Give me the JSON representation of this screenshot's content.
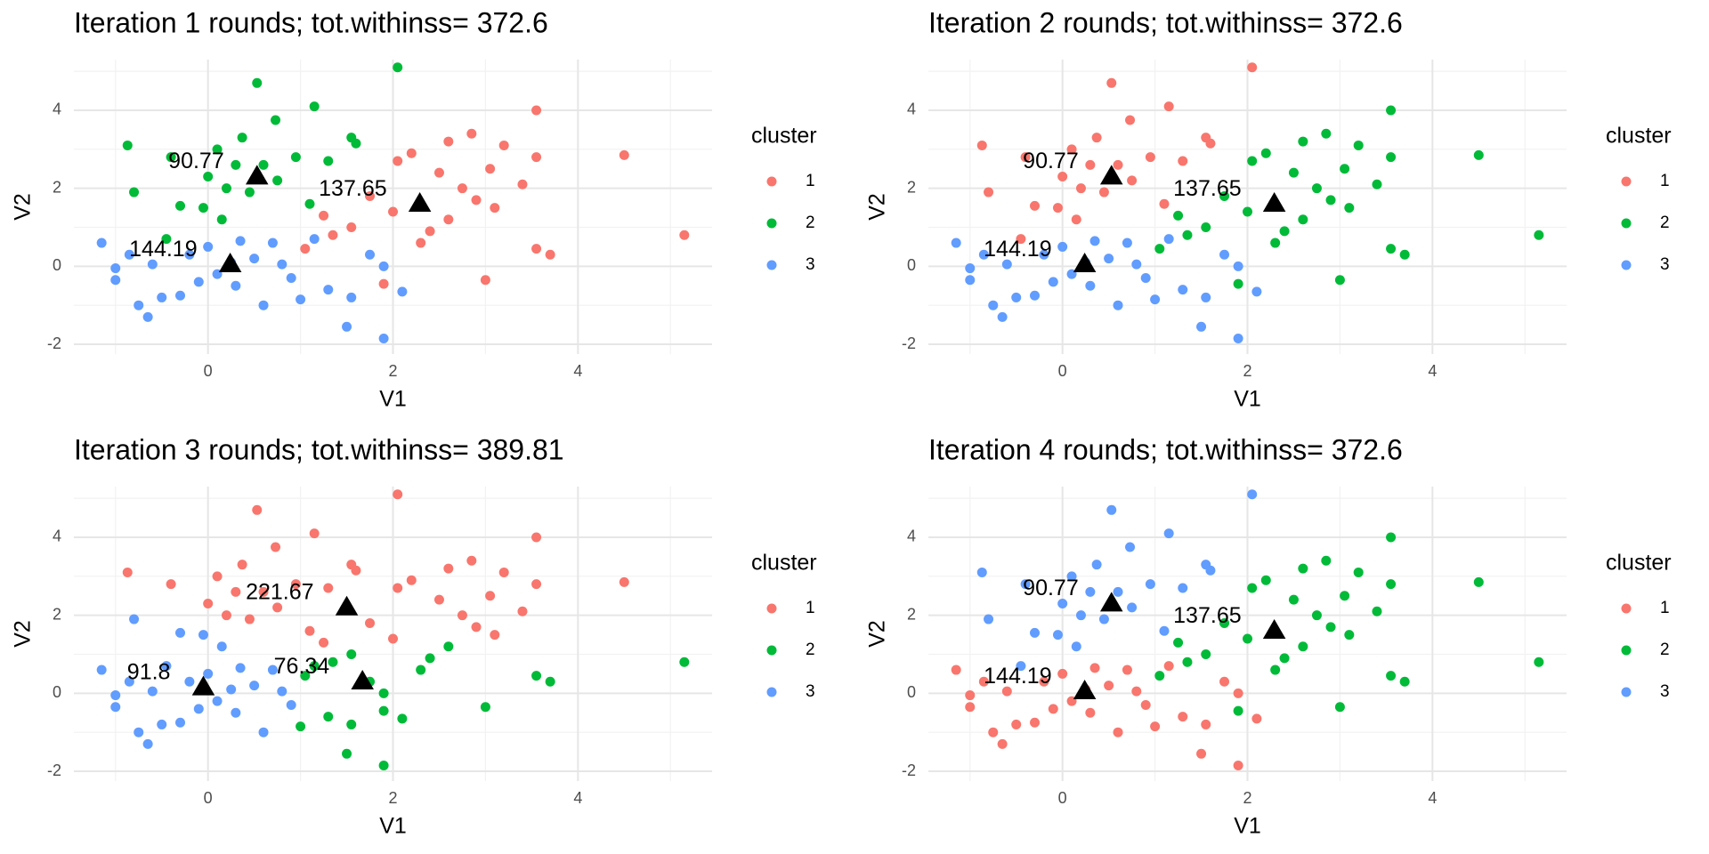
{
  "chart_data": [
    {
      "type": "scatter",
      "title": "Iteration 1 rounds; tot.withinss= 372.6",
      "x_label": "V1",
      "y_label": "V2",
      "legend_title": "cluster",
      "series": [
        {
          "name": "1",
          "color": "#F8766D"
        },
        {
          "name": "2",
          "color": "#00BA38"
        },
        {
          "name": "3",
          "color": "#619CFF"
        }
      ],
      "x": [
        0.53,
        2.05,
        1.15,
        0.73,
        -0.87,
        0.37,
        1.55,
        1.6,
        0.1,
        -0.4,
        0.95,
        0.3,
        -0.8,
        -0.3,
        0.0,
        0.2,
        0.6,
        1.3,
        0.75,
        -0.05,
        0.45,
        1.1,
        -0.45,
        0.15,
        3.55,
        2.85,
        3.2,
        2.2,
        2.6,
        3.05,
        3.55,
        4.5,
        5.15,
        2.05,
        2.5,
        1.75,
        2.0,
        2.3,
        2.6,
        3.1,
        2.9,
        3.7,
        3.55,
        3.0,
        1.35,
        1.05,
        1.9,
        1.55,
        2.4,
        3.4,
        1.25,
        2.75,
        -1.15,
        -1.0,
        -1.0,
        -0.75,
        -0.65,
        -0.5,
        -0.3,
        -0.2,
        0.0,
        0.1,
        0.3,
        0.5,
        0.7,
        0.9,
        1.0,
        1.15,
        1.5,
        1.55,
        1.9,
        1.75,
        2.1,
        0.6,
        -0.85,
        -0.6,
        0.35,
        0.8,
        1.3,
        -0.1,
        0.25,
        1.9
      ],
      "y": [
        4.7,
        5.1,
        4.1,
        3.75,
        3.1,
        3.3,
        3.3,
        3.15,
        3.0,
        2.8,
        2.8,
        2.6,
        1.9,
        1.55,
        2.3,
        2.0,
        2.6,
        2.7,
        2.2,
        1.5,
        1.9,
        1.6,
        0.7,
        1.2,
        4.0,
        3.4,
        3.1,
        2.9,
        3.2,
        2.5,
        2.8,
        2.85,
        0.8,
        2.7,
        2.4,
        1.8,
        1.4,
        0.6,
        1.2,
        1.5,
        1.7,
        0.3,
        0.45,
        -0.35,
        0.8,
        0.45,
        -0.45,
        1.0,
        0.9,
        2.1,
        1.3,
        2.0,
        0.6,
        -0.05,
        -0.35,
        -1.0,
        -1.3,
        -0.8,
        -0.75,
        0.3,
        0.5,
        -0.2,
        -0.5,
        0.2,
        0.6,
        -0.3,
        -0.85,
        0.7,
        -1.55,
        -0.8,
        -1.85,
        0.3,
        -0.65,
        -1.0,
        0.3,
        0.05,
        0.65,
        0.05,
        -0.6,
        -0.4,
        0.1,
        0.0
      ],
      "cluster": [
        2,
        2,
        2,
        2,
        2,
        2,
        2,
        2,
        2,
        2,
        2,
        2,
        2,
        2,
        2,
        2,
        2,
        2,
        2,
        2,
        2,
        2,
        2,
        2,
        1,
        1,
        1,
        1,
        1,
        1,
        1,
        1,
        1,
        1,
        1,
        1,
        1,
        1,
        1,
        1,
        1,
        1,
        1,
        1,
        1,
        1,
        1,
        1,
        1,
        1,
        1,
        1,
        3,
        3,
        3,
        3,
        3,
        3,
        3,
        3,
        3,
        3,
        3,
        3,
        3,
        3,
        3,
        3,
        3,
        3,
        3,
        3,
        3,
        3,
        3,
        3,
        3,
        3,
        3,
        3,
        3,
        3
      ],
      "centers": {
        "x": [
          0.53,
          2.29,
          0.24
        ],
        "y": [
          2.3,
          1.6,
          0.05
        ],
        "withinss": [
          90.77,
          137.65,
          144.19
        ]
      },
      "xlim": [
        -1.45,
        5.45
      ],
      "ylim": [
        -2.25,
        5.3
      ],
      "xticks": [
        0,
        2,
        4
      ],
      "yticks": [
        -2,
        0,
        2,
        4
      ],
      "grid": true
    },
    {
      "type": "scatter",
      "title": "Iteration 2 rounds; tot.withinss= 372.6",
      "x_label": "V1",
      "y_label": "V2",
      "legend_title": "cluster",
      "series": [
        {
          "name": "1",
          "color": "#F8766D"
        },
        {
          "name": "2",
          "color": "#00BA38"
        },
        {
          "name": "3",
          "color": "#619CFF"
        }
      ],
      "x": [
        0.53,
        2.05,
        1.15,
        0.73,
        -0.87,
        0.37,
        1.55,
        1.6,
        0.1,
        -0.4,
        0.95,
        0.3,
        -0.8,
        -0.3,
        0.0,
        0.2,
        0.6,
        1.3,
        0.75,
        -0.05,
        0.45,
        1.1,
        -0.45,
        0.15,
        3.55,
        2.85,
        3.2,
        2.2,
        2.6,
        3.05,
        3.55,
        4.5,
        5.15,
        2.05,
        2.5,
        1.75,
        2.0,
        2.3,
        2.6,
        3.1,
        2.9,
        3.7,
        3.55,
        3.0,
        1.35,
        1.05,
        1.9,
        1.55,
        2.4,
        3.4,
        1.25,
        2.75,
        -1.15,
        -1.0,
        -1.0,
        -0.75,
        -0.65,
        -0.5,
        -0.3,
        -0.2,
        0.0,
        0.1,
        0.3,
        0.5,
        0.7,
        0.9,
        1.0,
        1.15,
        1.5,
        1.55,
        1.9,
        1.75,
        2.1,
        0.6,
        -0.85,
        -0.6,
        0.35,
        0.8,
        1.3,
        -0.1,
        0.25,
        1.9
      ],
      "y": [
        4.7,
        5.1,
        4.1,
        3.75,
        3.1,
        3.3,
        3.3,
        3.15,
        3.0,
        2.8,
        2.8,
        2.6,
        1.9,
        1.55,
        2.3,
        2.0,
        2.6,
        2.7,
        2.2,
        1.5,
        1.9,
        1.6,
        0.7,
        1.2,
        4.0,
        3.4,
        3.1,
        2.9,
        3.2,
        2.5,
        2.8,
        2.85,
        0.8,
        2.7,
        2.4,
        1.8,
        1.4,
        0.6,
        1.2,
        1.5,
        1.7,
        0.3,
        0.45,
        -0.35,
        0.8,
        0.45,
        -0.45,
        1.0,
        0.9,
        2.1,
        1.3,
        2.0,
        0.6,
        -0.05,
        -0.35,
        -1.0,
        -1.3,
        -0.8,
        -0.75,
        0.3,
        0.5,
        -0.2,
        -0.5,
        0.2,
        0.6,
        -0.3,
        -0.85,
        0.7,
        -1.55,
        -0.8,
        -1.85,
        0.3,
        -0.65,
        -1.0,
        0.3,
        0.05,
        0.65,
        0.05,
        -0.6,
        -0.4,
        0.1,
        0.0
      ],
      "cluster": [
        1,
        1,
        1,
        1,
        1,
        1,
        1,
        1,
        1,
        1,
        1,
        1,
        1,
        1,
        1,
        1,
        1,
        1,
        1,
        1,
        1,
        1,
        1,
        1,
        2,
        2,
        2,
        2,
        2,
        2,
        2,
        2,
        2,
        2,
        2,
        2,
        2,
        2,
        2,
        2,
        2,
        2,
        2,
        2,
        2,
        2,
        2,
        2,
        2,
        2,
        2,
        2,
        3,
        3,
        3,
        3,
        3,
        3,
        3,
        3,
        3,
        3,
        3,
        3,
        3,
        3,
        3,
        3,
        3,
        3,
        3,
        3,
        3,
        3,
        3,
        3,
        3,
        3,
        3,
        3,
        3,
        3
      ],
      "centers": {
        "x": [
          0.53,
          2.29,
          0.24
        ],
        "y": [
          2.3,
          1.6,
          0.05
        ],
        "withinss": [
          90.77,
          137.65,
          144.19
        ]
      },
      "xlim": [
        -1.45,
        5.45
      ],
      "ylim": [
        -2.25,
        5.3
      ],
      "xticks": [
        0,
        2,
        4
      ],
      "yticks": [
        -2,
        0,
        2,
        4
      ],
      "grid": true
    },
    {
      "type": "scatter",
      "title": "Iteration 3 rounds; tot.withinss= 389.81",
      "x_label": "V1",
      "y_label": "V2",
      "legend_title": "cluster",
      "series": [
        {
          "name": "1",
          "color": "#F8766D"
        },
        {
          "name": "2",
          "color": "#00BA38"
        },
        {
          "name": "3",
          "color": "#619CFF"
        }
      ],
      "x": [
        0.53,
        2.05,
        1.15,
        0.73,
        -0.87,
        0.37,
        1.55,
        1.6,
        0.1,
        -0.4,
        0.95,
        0.3,
        -0.8,
        -0.3,
        0.0,
        0.2,
        0.6,
        1.3,
        0.75,
        -0.05,
        0.45,
        1.1,
        -0.45,
        0.15,
        3.55,
        2.85,
        3.2,
        2.2,
        2.6,
        3.05,
        3.55,
        4.5,
        5.15,
        2.05,
        2.5,
        1.75,
        2.0,
        2.3,
        2.6,
        3.1,
        2.9,
        3.7,
        3.55,
        3.0,
        1.35,
        1.05,
        1.9,
        1.55,
        2.4,
        3.4,
        1.25,
        2.75,
        -1.15,
        -1.0,
        -1.0,
        -0.75,
        -0.65,
        -0.5,
        -0.3,
        -0.2,
        0.0,
        0.1,
        0.3,
        0.5,
        0.7,
        0.9,
        1.0,
        1.15,
        1.5,
        1.55,
        1.9,
        1.75,
        2.1,
        0.6,
        -0.85,
        -0.6,
        0.35,
        0.8,
        1.3,
        -0.1,
        0.25,
        1.9
      ],
      "y": [
        4.7,
        5.1,
        4.1,
        3.75,
        3.1,
        3.3,
        3.3,
        3.15,
        3.0,
        2.8,
        2.8,
        2.6,
        1.9,
        1.55,
        2.3,
        2.0,
        2.6,
        2.7,
        2.2,
        1.5,
        1.9,
        1.6,
        0.7,
        1.2,
        4.0,
        3.4,
        3.1,
        2.9,
        3.2,
        2.5,
        2.8,
        2.85,
        0.8,
        2.7,
        2.4,
        1.8,
        1.4,
        0.6,
        1.2,
        1.5,
        1.7,
        0.3,
        0.45,
        -0.35,
        0.8,
        0.45,
        -0.45,
        1.0,
        0.9,
        2.1,
        1.3,
        2.0,
        0.6,
        -0.05,
        -0.35,
        -1.0,
        -1.3,
        -0.8,
        -0.75,
        0.3,
        0.5,
        -0.2,
        -0.5,
        0.2,
        0.6,
        -0.3,
        -0.85,
        0.7,
        -1.55,
        -0.8,
        -1.85,
        0.3,
        -0.65,
        -1.0,
        0.3,
        0.05,
        0.65,
        0.05,
        -0.6,
        -0.4,
        0.1,
        0.0
      ],
      "cluster": [
        1,
        1,
        1,
        1,
        1,
        1,
        1,
        1,
        1,
        1,
        1,
        1,
        3,
        3,
        1,
        1,
        1,
        1,
        1,
        3,
        1,
        1,
        3,
        3,
        1,
        1,
        1,
        1,
        1,
        1,
        1,
        1,
        2,
        1,
        1,
        1,
        1,
        2,
        2,
        1,
        1,
        2,
        2,
        2,
        2,
        2,
        2,
        2,
        2,
        1,
        1,
        1,
        3,
        3,
        3,
        3,
        3,
        3,
        3,
        3,
        3,
        3,
        3,
        3,
        3,
        3,
        2,
        2,
        2,
        2,
        2,
        2,
        2,
        3,
        3,
        3,
        3,
        3,
        2,
        3,
        3,
        2
      ],
      "centers": {
        "x": [
          1.5,
          1.67,
          -0.05
        ],
        "y": [
          2.2,
          0.3,
          0.15
        ],
        "withinss": [
          221.67,
          76.34,
          91.8
        ]
      },
      "xlim": [
        -1.45,
        5.45
      ],
      "ylim": [
        -2.25,
        5.3
      ],
      "xticks": [
        0,
        2,
        4
      ],
      "yticks": [
        -2,
        0,
        2,
        4
      ],
      "grid": true
    },
    {
      "type": "scatter",
      "title": "Iteration 4 rounds; tot.withinss= 372.6",
      "x_label": "V1",
      "y_label": "V2",
      "legend_title": "cluster",
      "series": [
        {
          "name": "1",
          "color": "#F8766D"
        },
        {
          "name": "2",
          "color": "#00BA38"
        },
        {
          "name": "3",
          "color": "#619CFF"
        }
      ],
      "x": [
        0.53,
        2.05,
        1.15,
        0.73,
        -0.87,
        0.37,
        1.55,
        1.6,
        0.1,
        -0.4,
        0.95,
        0.3,
        -0.8,
        -0.3,
        0.0,
        0.2,
        0.6,
        1.3,
        0.75,
        -0.05,
        0.45,
        1.1,
        -0.45,
        0.15,
        3.55,
        2.85,
        3.2,
        2.2,
        2.6,
        3.05,
        3.55,
        4.5,
        5.15,
        2.05,
        2.5,
        1.75,
        2.0,
        2.3,
        2.6,
        3.1,
        2.9,
        3.7,
        3.55,
        3.0,
        1.35,
        1.05,
        1.9,
        1.55,
        2.4,
        3.4,
        1.25,
        2.75,
        -1.15,
        -1.0,
        -1.0,
        -0.75,
        -0.65,
        -0.5,
        -0.3,
        -0.2,
        0.0,
        0.1,
        0.3,
        0.5,
        0.7,
        0.9,
        1.0,
        1.15,
        1.5,
        1.55,
        1.9,
        1.75,
        2.1,
        0.6,
        -0.85,
        -0.6,
        0.35,
        0.8,
        1.3,
        -0.1,
        0.25,
        1.9
      ],
      "y": [
        4.7,
        5.1,
        4.1,
        3.75,
        3.1,
        3.3,
        3.3,
        3.15,
        3.0,
        2.8,
        2.8,
        2.6,
        1.9,
        1.55,
        2.3,
        2.0,
        2.6,
        2.7,
        2.2,
        1.5,
        1.9,
        1.6,
        0.7,
        1.2,
        4.0,
        3.4,
        3.1,
        2.9,
        3.2,
        2.5,
        2.8,
        2.85,
        0.8,
        2.7,
        2.4,
        1.8,
        1.4,
        0.6,
        1.2,
        1.5,
        1.7,
        0.3,
        0.45,
        -0.35,
        0.8,
        0.45,
        -0.45,
        1.0,
        0.9,
        2.1,
        1.3,
        2.0,
        0.6,
        -0.05,
        -0.35,
        -1.0,
        -1.3,
        -0.8,
        -0.75,
        0.3,
        0.5,
        -0.2,
        -0.5,
        0.2,
        0.6,
        -0.3,
        -0.85,
        0.7,
        -1.55,
        -0.8,
        -1.85,
        0.3,
        -0.65,
        -1.0,
        0.3,
        0.05,
        0.65,
        0.05,
        -0.6,
        -0.4,
        0.1,
        0.0
      ],
      "cluster": [
        3,
        3,
        3,
        3,
        3,
        3,
        3,
        3,
        3,
        3,
        3,
        3,
        3,
        3,
        3,
        3,
        3,
        3,
        3,
        3,
        3,
        3,
        3,
        3,
        2,
        2,
        2,
        2,
        2,
        2,
        2,
        2,
        2,
        2,
        2,
        2,
        2,
        2,
        2,
        2,
        2,
        2,
        2,
        2,
        2,
        2,
        2,
        2,
        2,
        2,
        2,
        2,
        1,
        1,
        1,
        1,
        1,
        1,
        1,
        1,
        1,
        1,
        1,
        1,
        1,
        1,
        1,
        1,
        1,
        1,
        1,
        1,
        1,
        1,
        1,
        1,
        1,
        1,
        1,
        1,
        1,
        1
      ],
      "centers": {
        "x": [
          0.53,
          2.29,
          0.24
        ],
        "y": [
          2.3,
          1.6,
          0.05
        ],
        "withinss": [
          90.77,
          137.65,
          144.19
        ]
      },
      "xlim": [
        -1.45,
        5.45
      ],
      "ylim": [
        -2.25,
        5.3
      ],
      "xticks": [
        0,
        2,
        4
      ],
      "yticks": [
        -2,
        0,
        2,
        4
      ],
      "grid": true
    }
  ]
}
